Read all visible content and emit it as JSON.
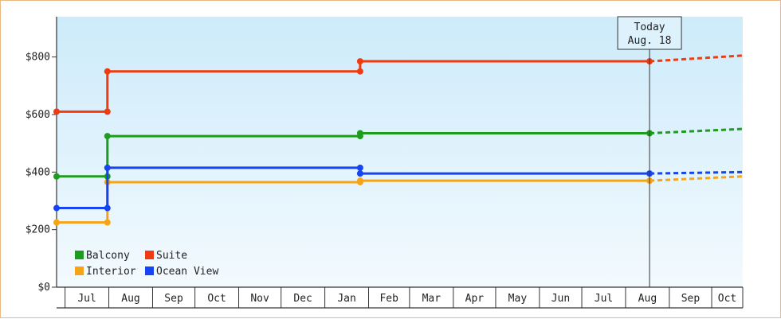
{
  "chart_data": {
    "type": "line",
    "step": true,
    "y_tick_labels": [
      "$0",
      "$200",
      "$400",
      "$600",
      "$800"
    ],
    "y_ticks": [
      0,
      200,
      400,
      600,
      800
    ],
    "ylim": [
      0,
      940
    ],
    "x_tick_labels": [
      "Jul",
      "Aug",
      "Sep",
      "Oct",
      "Nov",
      "Dec",
      "Jan",
      "Feb",
      "Mar",
      "Apr",
      "May",
      "Jun",
      "Jul",
      "Aug",
      "Sep",
      "Oct"
    ],
    "x_month_starts": [
      "2023-06-01",
      "2023-07-01",
      "2023-08-01",
      "2023-09-01",
      "2023-10-01",
      "2023-11-01",
      "2023-12-01",
      "2024-01-01",
      "2024-02-01",
      "2024-03-01",
      "2024-04-01",
      "2024-05-01",
      "2024-06-01",
      "2024-07-01",
      "2024-08-01",
      "2024-09-01",
      "2024-10-01",
      "2024-10-23"
    ],
    "x_label_positions": [
      "2023-07-01",
      "2023-08-01",
      "2023-09-01",
      "2023-10-01",
      "2023-11-01",
      "2023-12-01",
      "2024-01-01",
      "2024-02-01",
      "2024-03-01",
      "2024-04-01",
      "2024-05-01",
      "2024-06-01",
      "2024-07-01",
      "2024-08-01",
      "2024-09-01",
      "2024-10-01"
    ],
    "xlim": [
      "2023-06-25",
      "2024-10-23"
    ],
    "today": {
      "date": "2024-08-18",
      "label_line1": "Today",
      "label_line2": "Aug. 18"
    },
    "legend": {
      "placement": "bottom-left"
    },
    "grid": false,
    "series": [
      {
        "name": "Balcony",
        "color": "#1e9c1e",
        "points": [
          [
            "2023-06-25",
            385
          ],
          [
            "2023-07-31",
            385
          ],
          [
            "2023-07-31",
            525
          ],
          [
            "2024-01-26",
            525
          ],
          [
            "2024-01-26",
            535
          ],
          [
            "2024-08-18",
            535
          ]
        ],
        "forecast": [
          [
            "2024-08-18",
            535
          ],
          [
            "2024-10-23",
            550
          ]
        ]
      },
      {
        "name": "Suite",
        "color": "#f03a10",
        "points": [
          [
            "2023-06-25",
            610
          ],
          [
            "2023-07-31",
            610
          ],
          [
            "2023-07-31",
            750
          ],
          [
            "2024-01-26",
            750
          ],
          [
            "2024-01-26",
            785
          ],
          [
            "2024-08-18",
            785
          ]
        ],
        "forecast": [
          [
            "2024-08-18",
            785
          ],
          [
            "2024-10-23",
            805
          ]
        ]
      },
      {
        "name": "Interior",
        "color": "#f5a418",
        "points": [
          [
            "2023-06-25",
            225
          ],
          [
            "2023-07-31",
            225
          ],
          [
            "2023-07-31",
            365
          ],
          [
            "2024-01-26",
            365
          ],
          [
            "2024-01-26",
            370
          ],
          [
            "2024-08-18",
            370
          ]
        ],
        "forecast": [
          [
            "2024-08-18",
            370
          ],
          [
            "2024-10-23",
            385
          ]
        ]
      },
      {
        "name": "Ocean View",
        "color": "#1644f2",
        "points": [
          [
            "2023-06-25",
            275
          ],
          [
            "2023-07-31",
            275
          ],
          [
            "2023-07-31",
            415
          ],
          [
            "2024-01-26",
            415
          ],
          [
            "2024-01-26",
            395
          ],
          [
            "2024-08-18",
            395
          ]
        ],
        "forecast": [
          [
            "2024-08-18",
            395
          ],
          [
            "2024-10-23",
            400
          ]
        ]
      }
    ]
  }
}
